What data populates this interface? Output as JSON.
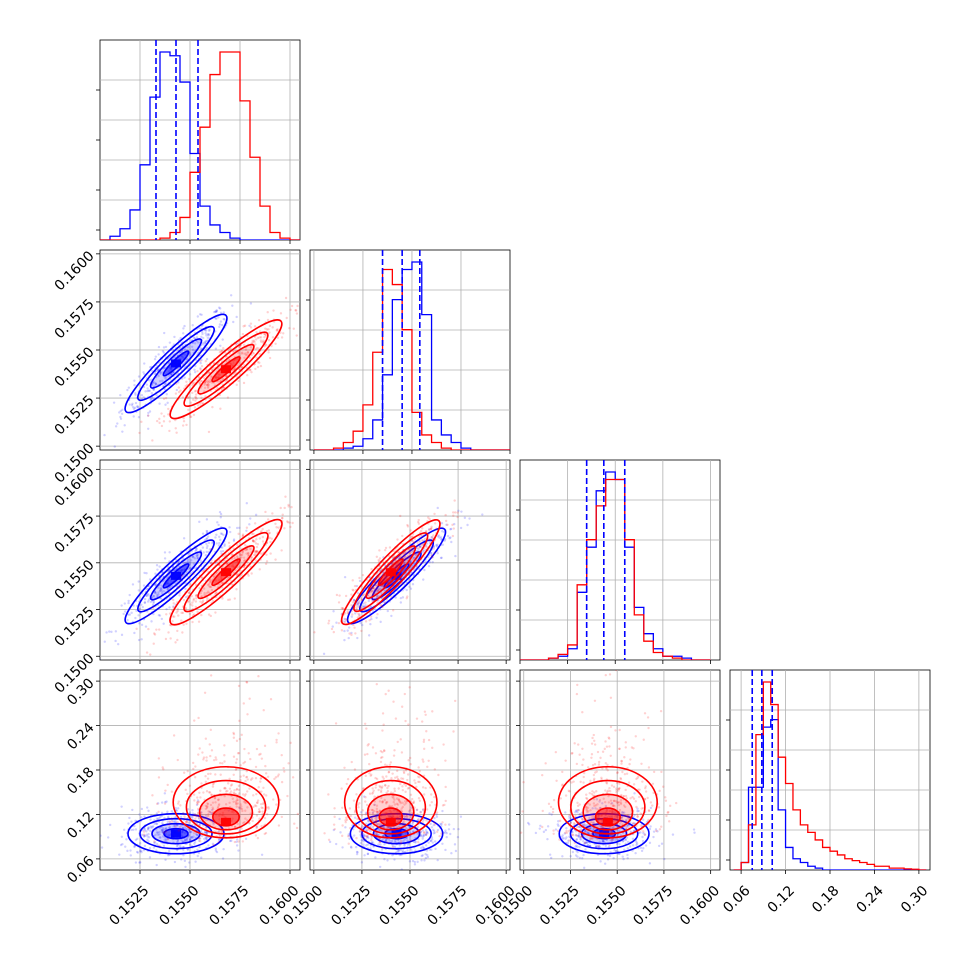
{
  "chart_data": {
    "type": "corner",
    "colors": {
      "blue": "#0000ff",
      "red": "#ff0000"
    },
    "grid": true,
    "series": [
      {
        "color": "blue",
        "mean": [
          0.1543,
          0.1543,
          0.1543,
          0.094
        ],
        "std": [
          0.001,
          0.001,
          0.001,
          0.015
        ],
        "quantiles_dashed": true
      },
      {
        "color": "red",
        "mean": [
          0.1568,
          0.154,
          0.1545,
          0.11
        ],
        "std": [
          0.0011,
          0.001,
          0.0011,
          0.04
        ]
      }
    ],
    "panels_1d": [
      {
        "index": 0,
        "xlim": [
          0.1505,
          0.1605
        ],
        "bins": [
          0.1505,
          0.151,
          0.1515,
          0.152,
          0.1525,
          0.153,
          0.1535,
          0.154,
          0.1545,
          0.155,
          0.1555,
          0.156,
          0.1565,
          0.157,
          0.1575,
          0.158,
          0.1585,
          0.159,
          0.1595,
          0.16,
          0.1605
        ],
        "blue_counts": [
          0,
          1,
          3,
          8,
          20,
          38,
          50,
          49,
          42,
          23,
          9,
          4,
          2,
          0.5,
          0,
          0,
          0,
          0,
          0,
          0
        ],
        "red_counts": [
          0,
          0,
          0,
          0,
          0,
          0,
          0.5,
          2,
          6,
          18,
          30,
          44,
          50,
          50,
          37,
          22,
          9,
          2,
          0.5,
          0
        ],
        "quantiles": [
          0.1533,
          0.1543,
          0.1554
        ]
      },
      {
        "index": 1,
        "xlim": [
          0.1498,
          0.16
        ],
        "bins": [
          0.15,
          0.1505,
          0.151,
          0.1515,
          0.152,
          0.1525,
          0.153,
          0.1535,
          0.154,
          0.1545,
          0.155,
          0.1555,
          0.156,
          0.1565,
          0.157,
          0.1575,
          0.158,
          0.1585,
          0.159,
          0.1595,
          0.16
        ],
        "blue_counts": [
          0,
          0,
          0,
          0.5,
          1,
          3,
          8,
          20,
          40,
          48,
          50,
          36,
          8,
          4,
          2,
          0.5,
          0,
          0,
          0,
          0
        ],
        "red_counts": [
          0,
          0,
          0.5,
          2,
          5,
          12,
          26,
          48,
          44,
          32,
          10,
          4,
          2,
          0.5,
          0,
          0,
          0,
          0,
          0,
          0
        ],
        "quantiles": [
          0.1535,
          0.1545,
          0.1554
        ]
      },
      {
        "index": 2,
        "xlim": [
          0.15,
          0.1605
        ],
        "bins": [
          0.15,
          0.1505,
          0.151,
          0.1515,
          0.152,
          0.1525,
          0.153,
          0.1535,
          0.154,
          0.1545,
          0.155,
          0.1555,
          0.156,
          0.1565,
          0.157,
          0.1575,
          0.158,
          0.1585,
          0.159,
          0.1595,
          0.16
        ],
        "blue_counts": [
          0,
          0,
          0,
          0.5,
          1,
          3,
          18,
          30,
          45,
          50,
          48,
          30,
          14,
          7,
          3,
          1,
          1,
          0.5,
          0,
          0
        ],
        "red_counts": [
          0,
          0,
          0,
          0.5,
          1.5,
          4,
          20,
          32,
          41,
          48,
          48,
          32,
          12,
          5,
          2,
          1,
          0.5,
          0,
          0,
          0
        ],
        "quantiles": [
          0.1535,
          0.1544,
          0.1555
        ]
      },
      {
        "index": 3,
        "xlim": [
          0.045,
          0.315
        ],
        "bins": [
          0.05,
          0.06,
          0.07,
          0.08,
          0.09,
          0.1,
          0.11,
          0.12,
          0.13,
          0.14,
          0.15,
          0.16,
          0.17,
          0.18,
          0.19,
          0.2,
          0.21,
          0.22,
          0.23,
          0.24,
          0.25,
          0.26,
          0.27,
          0.28,
          0.29,
          0.3,
          0.31
        ],
        "blue_counts": [
          0,
          2,
          22,
          22,
          38,
          40,
          16,
          6,
          3,
          2,
          1,
          0.5,
          0,
          0,
          0,
          0,
          0,
          0,
          0,
          0,
          0,
          0,
          0,
          0,
          0,
          0
        ],
        "red_counts": [
          0,
          2,
          12,
          36,
          50,
          44,
          30,
          23,
          16,
          12,
          10,
          8,
          6,
          5,
          4,
          3,
          2.5,
          2,
          1.5,
          1,
          1,
          0.5,
          0.5,
          0.3,
          0.2,
          0
        ],
        "quantiles": [
          0.075,
          0.088,
          0.102
        ]
      }
    ],
    "axes": [
      {
        "lim": [
          0.1505,
          0.1605
        ],
        "ticks": [
          "0.1525",
          "0.1550",
          "0.1575",
          "0.1600"
        ],
        "tick_values": [
          0.1525,
          0.155,
          0.1575,
          0.16
        ]
      },
      {
        "lim": [
          0.1498,
          0.1602
        ],
        "ticks": [
          "0.1500",
          "0.1525",
          "0.1550",
          "0.1575",
          "0.1600"
        ],
        "tick_values": [
          0.15,
          0.1525,
          0.155,
          0.1575,
          0.16
        ]
      },
      {
        "lim": [
          0.1498,
          0.1605
        ],
        "ticks": [
          "0.1500",
          "0.1525",
          "0.1550",
          "0.1575",
          "0.1600"
        ],
        "tick_values": [
          0.15,
          0.1525,
          0.155,
          0.1575,
          0.16
        ]
      },
      {
        "lim": [
          0.045,
          0.315
        ],
        "ticks": [
          "0.06",
          "0.12",
          "0.18",
          "0.24",
          "0.30"
        ],
        "tick_values": [
          0.06,
          0.12,
          0.18,
          0.24,
          0.3
        ]
      }
    ],
    "extra_tick_labels": [
      {
        "text": "0.1500",
        "where": "left of row 2 top"
      },
      {
        "text": "0.1500",
        "where": "left of row 3 top"
      },
      {
        "text": "0.1600",
        "where": "between column 1 and 2 at bottom"
      },
      {
        "text": "0.1500",
        "where": "between column 1 and 2 at bottom"
      }
    ]
  }
}
